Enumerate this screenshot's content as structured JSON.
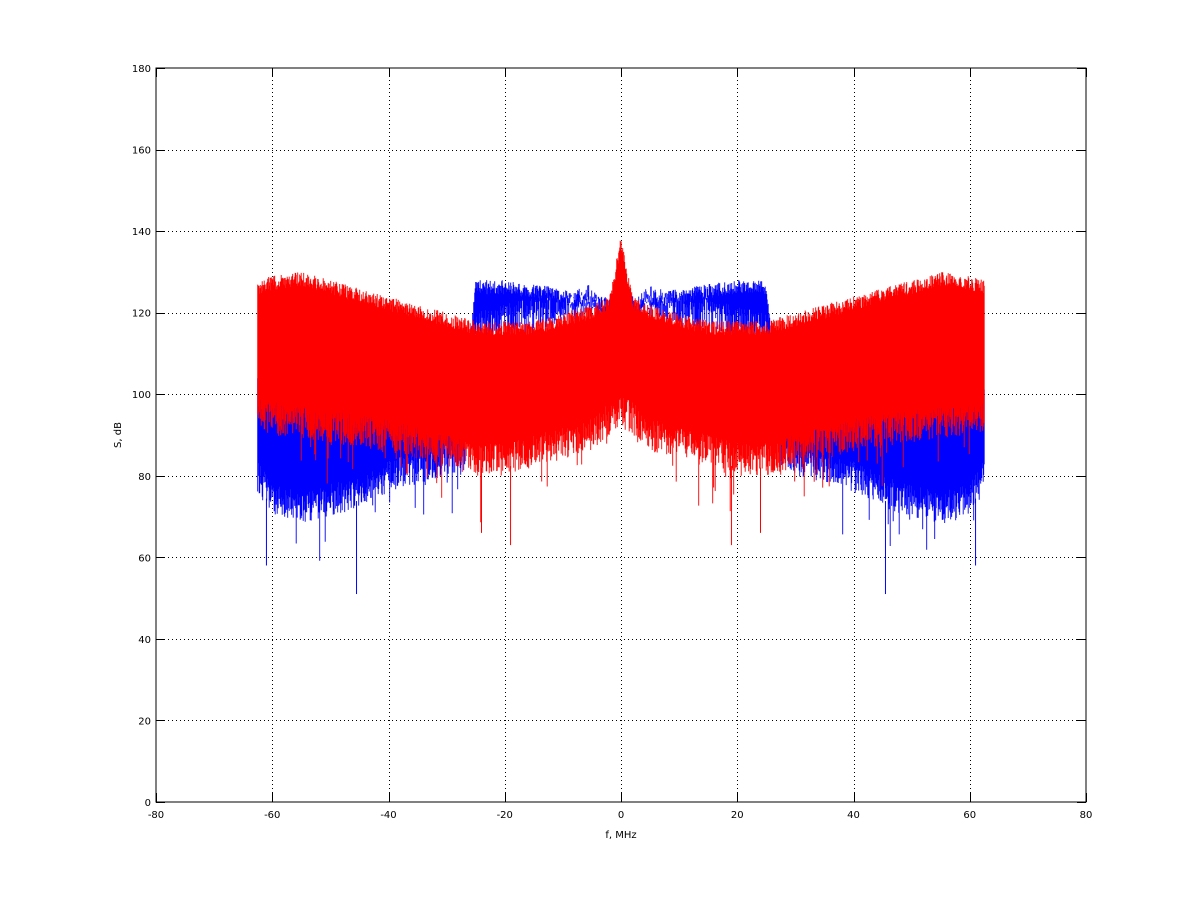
{
  "chart_data": {
    "type": "line",
    "title": "",
    "xlabel": "f, MHz",
    "ylabel": "S, dB",
    "xlim": [
      -80,
      80
    ],
    "ylim": [
      0,
      180
    ],
    "xticks": [
      -80,
      -60,
      -40,
      -20,
      0,
      20,
      40,
      60,
      80
    ],
    "yticks": [
      0,
      20,
      40,
      60,
      80,
      100,
      120,
      140,
      160,
      180
    ],
    "xtick_labels": [
      "-80",
      "-60",
      "-40",
      "-20",
      "0",
      "20",
      "40",
      "60",
      "80"
    ],
    "ytick_labels": [
      "0",
      "20",
      "40",
      "60",
      "80",
      "100",
      "120",
      "140",
      "160",
      "180"
    ],
    "grid": true,
    "legend": "none",
    "series": [
      {
        "color": "#0000ff",
        "x": [
          -62.5,
          -60,
          -55,
          -50,
          -45,
          -40,
          -35,
          -30,
          -27,
          -25,
          -20,
          -15,
          -10,
          -5,
          -2,
          0,
          2,
          5,
          10,
          15,
          20,
          25,
          27,
          30,
          35,
          40,
          45,
          50,
          55,
          60,
          62.5
        ],
        "upper": [
          104,
          103,
          103,
          102,
          100,
          99,
          98,
          97,
          97,
          128,
          128,
          127,
          126,
          124,
          124,
          130,
          124,
          124,
          126,
          127,
          128,
          128,
          97,
          97,
          98,
          99,
          100,
          102,
          103,
          103,
          104
        ],
        "lower": [
          78,
          72,
          70,
          72,
          74,
          78,
          80,
          82,
          83,
          114,
          116,
          118,
          119,
          121,
          117,
          116,
          117,
          121,
          119,
          118,
          116,
          114,
          83,
          82,
          80,
          78,
          74,
          72,
          70,
          72,
          78
        ],
        "min_spikes": [
          [
            -61,
            58
          ],
          [
            -45.5,
            51
          ],
          [
            45.5,
            51
          ],
          [
            61,
            58
          ]
        ]
      },
      {
        "color": "#ff0000",
        "x": [
          -62.5,
          -60,
          -55,
          -50,
          -45,
          -40,
          -35,
          -30,
          -25,
          -20,
          -15,
          -10,
          -5,
          -2,
          0,
          2,
          5,
          10,
          15,
          20,
          25,
          30,
          35,
          40,
          45,
          50,
          55,
          60,
          62.5
        ],
        "upper": [
          128,
          129,
          130,
          128,
          126,
          124,
          122,
          120,
          118,
          118,
          118,
          120,
          122,
          124,
          139,
          124,
          122,
          120,
          118,
          118,
          118,
          120,
          122,
          124,
          126,
          128,
          130,
          129,
          128
        ],
        "lower": [
          93,
          92,
          91,
          90,
          89,
          88,
          86,
          84,
          82,
          82,
          84,
          86,
          88,
          92,
          94,
          92,
          88,
          86,
          84,
          82,
          82,
          84,
          86,
          88,
          89,
          90,
          91,
          92,
          93
        ],
        "min_spikes": [
          [
            -24,
            66
          ],
          [
            -19,
            63
          ],
          [
            19,
            63
          ],
          [
            24,
            66
          ]
        ]
      }
    ]
  }
}
